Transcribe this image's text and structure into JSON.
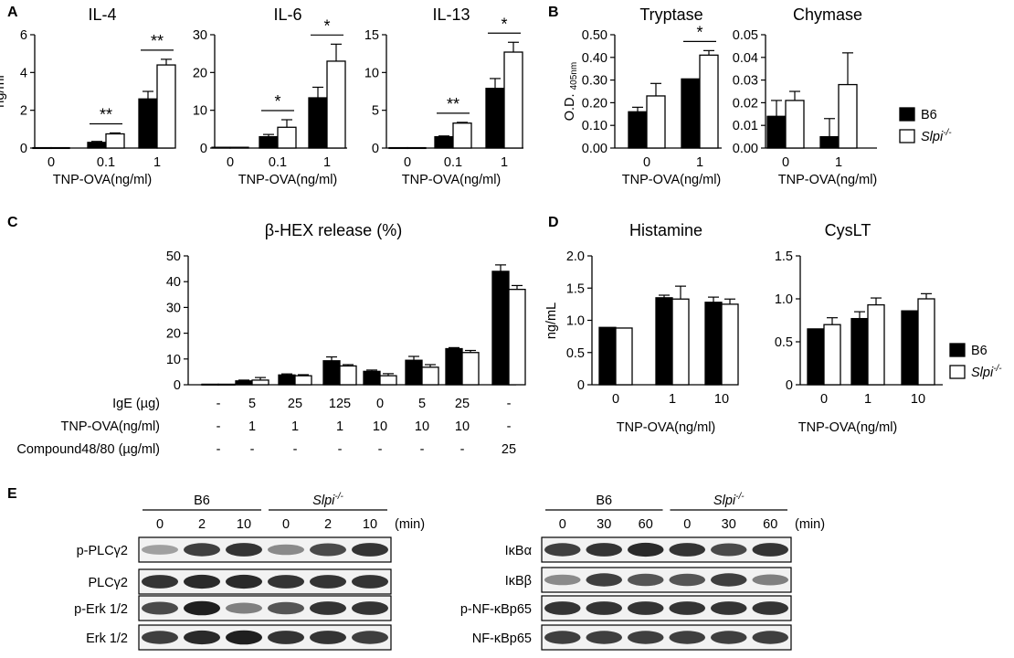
{
  "panel_labels": [
    "A",
    "B",
    "C",
    "D",
    "E"
  ],
  "legend": {
    "entries": [
      {
        "label": "B6",
        "italic": false,
        "fill": "#000000"
      },
      {
        "label": "Slpi",
        "sup": "-/-",
        "italic": true,
        "fill": "#ffffff"
      }
    ]
  },
  "colors": {
    "b6": "#000000",
    "slpi": "#ffffff",
    "stroke": "#000000",
    "blot_band": "#1a1a1a"
  },
  "chart_data": [
    {
      "id": "A-IL-4",
      "panel": "A",
      "type": "bar",
      "title": "IL-4",
      "ylabel": "ng/ml",
      "xlabel": "TNP-OVA(ng/ml)",
      "categories": [
        "0",
        "0.1",
        "1"
      ],
      "ylim": [
        0,
        6
      ],
      "yticks": [
        "0",
        "2",
        "4",
        "6"
      ],
      "series": [
        {
          "name": "B6",
          "values": [
            0.02,
            0.3,
            2.6
          ],
          "errors": [
            0,
            0.05,
            0.4
          ]
        },
        {
          "name": "Slpi-/-",
          "values": [
            0.02,
            0.75,
            4.4
          ],
          "errors": [
            0,
            0.05,
            0.3
          ]
        }
      ],
      "significance": [
        {
          "category": "0.1",
          "mark": "**"
        },
        {
          "category": "1",
          "mark": "**"
        }
      ]
    },
    {
      "id": "A-IL-6",
      "panel": "A",
      "type": "bar",
      "title": "IL-6",
      "ylabel": "",
      "xlabel": "TNP-OVA(ng/ml)",
      "categories": [
        "0",
        "0.1",
        "1"
      ],
      "ylim": [
        0,
        30
      ],
      "yticks": [
        "0",
        "10",
        "20",
        "30"
      ],
      "series": [
        {
          "name": "B6",
          "values": [
            0.2,
            3,
            13.3
          ],
          "errors": [
            0,
            0.6,
            2.8
          ]
        },
        {
          "name": "Slpi-/-",
          "values": [
            0.2,
            5.5,
            23
          ],
          "errors": [
            0,
            2,
            4.5
          ]
        }
      ],
      "significance": [
        {
          "category": "0.1",
          "mark": "*"
        },
        {
          "category": "1",
          "mark": "*"
        }
      ]
    },
    {
      "id": "A-IL-13",
      "panel": "A",
      "type": "bar",
      "title": "IL-13",
      "ylabel": "",
      "xlabel": "TNP-OVA(ng/ml)",
      "categories": [
        "0",
        "0.1",
        "1"
      ],
      "ylim": [
        0,
        15
      ],
      "yticks": [
        "0",
        "5",
        "10",
        "15"
      ],
      "series": [
        {
          "name": "B6",
          "values": [
            0.05,
            1.5,
            7.9
          ],
          "errors": [
            0,
            0.1,
            1.3
          ]
        },
        {
          "name": "Slpi-/-",
          "values": [
            0.05,
            3.3,
            12.7
          ],
          "errors": [
            0,
            0.1,
            1.3
          ]
        }
      ],
      "significance": [
        {
          "category": "0.1",
          "mark": "**"
        },
        {
          "category": "1",
          "mark": "*"
        }
      ]
    },
    {
      "id": "B-Tryptase",
      "panel": "B",
      "type": "bar",
      "title": "Tryptase",
      "ylabel": "O.D.",
      "ylabel_sub": "405nm",
      "xlabel": "TNP-OVA(ng/ml)",
      "categories": [
        "0",
        "1"
      ],
      "ylim": [
        0,
        0.5
      ],
      "yticks": [
        "0.00",
        "0.10",
        "0.20",
        "0.30",
        "0.40",
        "0.50"
      ],
      "series": [
        {
          "name": "B6",
          "values": [
            0.16,
            0.305
          ],
          "errors": [
            0.02,
            0
          ]
        },
        {
          "name": "Slpi-/-",
          "values": [
            0.23,
            0.41
          ],
          "errors": [
            0.055,
            0.02
          ]
        }
      ],
      "significance": [
        {
          "category": "1",
          "mark": "*"
        }
      ]
    },
    {
      "id": "B-Chymase",
      "panel": "B",
      "type": "bar",
      "title": "Chymase",
      "ylabel": "",
      "xlabel": "TNP-OVA(ng/ml)",
      "categories": [
        "0",
        "1"
      ],
      "ylim": [
        0,
        0.05
      ],
      "yticks": [
        "0.00",
        "0.01",
        "0.02",
        "0.03",
        "0.04",
        "0.05"
      ],
      "series": [
        {
          "name": "B6",
          "values": [
            0.014,
            0.005
          ],
          "errors": [
            0.007,
            0.008
          ]
        },
        {
          "name": "Slpi-/-",
          "values": [
            0.021,
            0.028
          ],
          "errors": [
            0.004,
            0.014
          ]
        }
      ],
      "significance": []
    },
    {
      "id": "C-beta-HEX",
      "panel": "C",
      "type": "bar",
      "title": "β-HEX release (%)",
      "ylabel": "",
      "xlabel": "",
      "categories": [
        "1",
        "2",
        "3",
        "4",
        "5",
        "6",
        "7",
        "8"
      ],
      "ylim": [
        0,
        50
      ],
      "yticks": [
        "0",
        "10",
        "20",
        "30",
        "40",
        "50"
      ],
      "series": [
        {
          "name": "B6",
          "values": [
            0.2,
            1.5,
            3.8,
            9.3,
            5.2,
            9.5,
            14,
            44
          ],
          "errors": [
            0,
            0.3,
            0.4,
            1.5,
            0.5,
            1.5,
            0.4,
            2.5
          ]
        },
        {
          "name": "Slpi-/-",
          "values": [
            0.2,
            1.8,
            3.5,
            7.3,
            3.5,
            6.8,
            12.5,
            37
          ],
          "errors": [
            0,
            1,
            0.4,
            0.5,
            0.8,
            1,
            0.8,
            1.5
          ]
        }
      ],
      "table": [
        {
          "label": "IgE (µg)",
          "values": [
            "-",
            "5",
            "25",
            "125",
            "0",
            "5",
            "25",
            "-"
          ]
        },
        {
          "label": "TNP-OVA(ng/ml)",
          "values": [
            "-",
            "1",
            "1",
            "1",
            "10",
            "10",
            "10",
            "-"
          ]
        },
        {
          "label": "Compound48/80 (µg/ml)",
          "values": [
            "-",
            "-",
            "-",
            "-",
            "-",
            "-",
            "-",
            "25"
          ]
        }
      ]
    },
    {
      "id": "D-Histamine",
      "panel": "D",
      "type": "bar",
      "title": "Histamine",
      "ylabel": "ng/mL",
      "xlabel": "TNP-OVA(ng/ml)",
      "categories": [
        "0",
        "1",
        "10"
      ],
      "ylim": [
        0,
        2.0
      ],
      "yticks": [
        "0",
        "0.5",
        "1.0",
        "1.5",
        "2.0"
      ],
      "series": [
        {
          "name": "B6",
          "values": [
            0.89,
            1.35,
            1.28
          ],
          "errors": [
            0,
            0.04,
            0.08
          ]
        },
        {
          "name": "Slpi-/-",
          "values": [
            0.88,
            1.33,
            1.25
          ],
          "errors": [
            0,
            0.2,
            0.08
          ]
        }
      ],
      "significance": []
    },
    {
      "id": "D-CysLT",
      "panel": "D",
      "type": "bar",
      "title": "CysLT",
      "ylabel": "",
      "xlabel": "TNP-OVA(ng/ml)",
      "categories": [
        "0",
        "1",
        "10"
      ],
      "ylim": [
        0,
        1.5
      ],
      "yticks": [
        "0",
        "0.5",
        "1.0",
        "1.5"
      ],
      "series": [
        {
          "name": "B6",
          "values": [
            0.65,
            0.77,
            0.86
          ],
          "errors": [
            0,
            0.08,
            0
          ]
        },
        {
          "name": "Slpi-/-",
          "values": [
            0.7,
            0.93,
            1.0
          ],
          "errors": [
            0.08,
            0.08,
            0.06
          ]
        }
      ],
      "significance": []
    }
  ],
  "blots": [
    {
      "id": "E-left",
      "panel": "E",
      "groups": [
        {
          "name": "B6",
          "italic": false
        },
        {
          "name": "Slpi",
          "sup": "-/-",
          "italic": true
        }
      ],
      "times": [
        "0",
        "2",
        "10",
        "0",
        "2",
        "10"
      ],
      "unit": "(min)",
      "rows": [
        {
          "label": "p-PLCγ2",
          "intensities": [
            0.35,
            0.8,
            0.85,
            0.45,
            0.75,
            0.85
          ]
        },
        {
          "label": "PLCγ2",
          "intensities": [
            0.85,
            0.9,
            0.9,
            0.85,
            0.85,
            0.85
          ]
        },
        {
          "label": "p-Erk 1/2",
          "intensities": [
            0.75,
            0.95,
            0.5,
            0.7,
            0.85,
            0.85
          ]
        },
        {
          "label": "Erk 1/2",
          "intensities": [
            0.8,
            0.9,
            0.95,
            0.85,
            0.85,
            0.8
          ]
        }
      ]
    },
    {
      "id": "E-right",
      "panel": "E",
      "groups": [
        {
          "name": "B6",
          "italic": false
        },
        {
          "name": "Slpi",
          "sup": "-/-",
          "italic": true
        }
      ],
      "times": [
        "0",
        "30",
        "60",
        "0",
        "30",
        "60"
      ],
      "unit": "(min)",
      "rows": [
        {
          "label": "IκBα",
          "intensities": [
            0.8,
            0.85,
            0.9,
            0.85,
            0.75,
            0.85
          ]
        },
        {
          "label": "IκBβ",
          "intensities": [
            0.45,
            0.8,
            0.7,
            0.7,
            0.8,
            0.5
          ]
        },
        {
          "label": "p-NF-κBp65",
          "intensities": [
            0.85,
            0.85,
            0.85,
            0.85,
            0.85,
            0.85
          ]
        },
        {
          "label": "NF-κBp65",
          "intensities": [
            0.8,
            0.8,
            0.8,
            0.8,
            0.8,
            0.8
          ]
        }
      ]
    }
  ]
}
